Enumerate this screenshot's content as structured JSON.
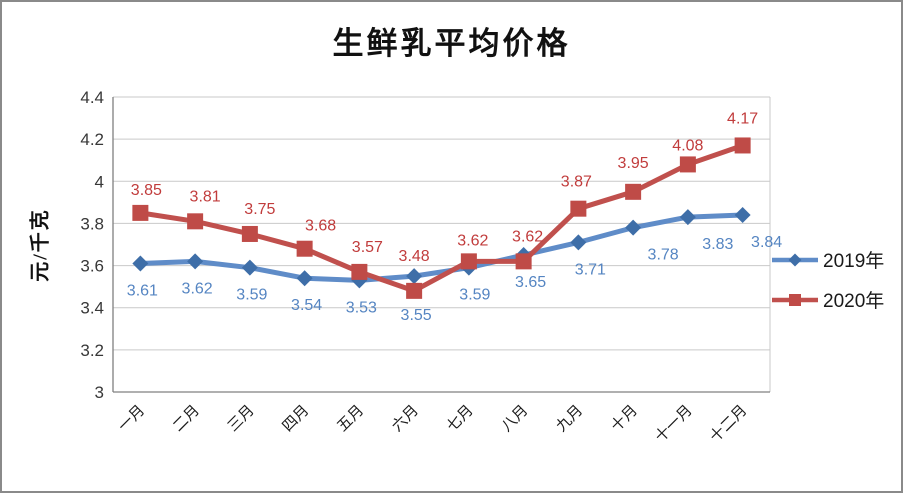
{
  "frame": {
    "background": "#FFFFFF",
    "border_color": "#8A8A8A"
  },
  "chart_data": {
    "type": "line",
    "title": "生鲜乳平均价格",
    "ylabel": "元/千克",
    "xlabel": "",
    "categories": [
      "一月",
      "二月",
      "三月",
      "四月",
      "五月",
      "六月",
      "七月",
      "八月",
      "九月",
      "十月",
      "十一月",
      "十二月"
    ],
    "series": [
      {
        "name": "2019年",
        "marker": "diamond",
        "line_color": "#5F8CC8",
        "marker_color": "#3E6EA8",
        "label_color": "#5585C2",
        "label_position": "below",
        "values": [
          3.61,
          3.62,
          3.59,
          3.54,
          3.53,
          3.55,
          3.59,
          3.65,
          3.71,
          3.78,
          3.83,
          3.84
        ]
      },
      {
        "name": "2020年",
        "marker": "square",
        "line_color": "#C0504D",
        "marker_color": "#BF4B47",
        "label_color": "#C13C3C",
        "label_position": "above",
        "values": [
          3.85,
          3.81,
          3.75,
          3.68,
          3.57,
          3.48,
          3.62,
          3.62,
          3.87,
          3.95,
          4.08,
          4.17
        ]
      }
    ],
    "ylim": [
      3,
      4.4
    ],
    "yticks": [
      {
        "label": "4.4",
        "value": 4.4
      },
      {
        "label": "4.2",
        "value": 4.2
      },
      {
        "label": "4",
        "value": 4.0
      },
      {
        "label": "3.8",
        "value": 3.8
      },
      {
        "label": "3.6",
        "value": 3.6
      },
      {
        "label": "3.4",
        "value": 3.4
      },
      {
        "label": "3.2",
        "value": 3.2
      },
      {
        "label": "3",
        "value": 3.0
      }
    ],
    "grid": true,
    "legend_position": "right"
  }
}
